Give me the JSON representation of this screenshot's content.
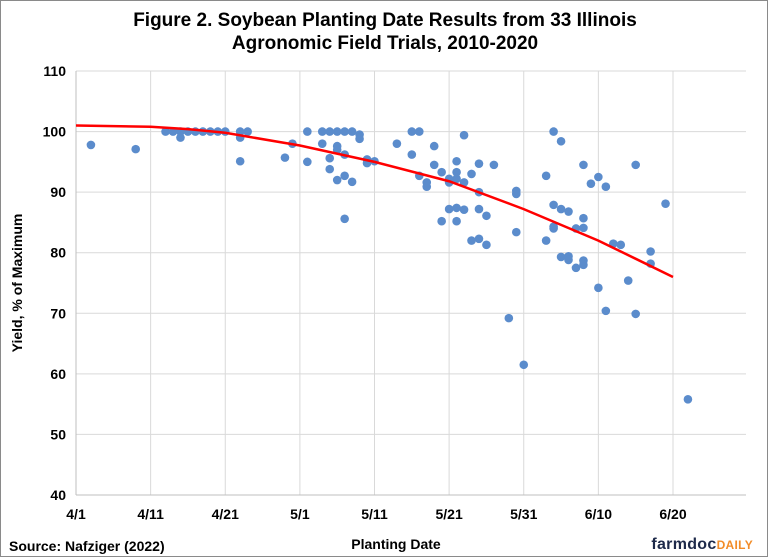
{
  "chart_data": {
    "type": "scatter",
    "title_line1": "Figure 2. Soybean Planting Date Results from 33 Illinois",
    "title_line2": "Agronomic Field Trials, 2010-2020",
    "xlabel": "Planting Date",
    "ylabel": "Yield, % of Maximum",
    "xlim": [
      "4/1",
      "6/25"
    ],
    "ylim": [
      40,
      110
    ],
    "xticks": [
      "4/1",
      "4/11",
      "4/21",
      "5/1",
      "5/11",
      "5/21",
      "5/31",
      "6/10",
      "6/20"
    ],
    "yticks": [
      40,
      50,
      60,
      70,
      80,
      90,
      100,
      110
    ],
    "grid": true,
    "point_color": "#5b8ccc",
    "curve_color": "#ff0000",
    "points": [
      [
        "4/3",
        97.8
      ],
      [
        "4/9",
        97.1
      ],
      [
        "4/13",
        100
      ],
      [
        "4/14",
        100
      ],
      [
        "4/15",
        100
      ],
      [
        "4/15",
        99
      ],
      [
        "4/16",
        100
      ],
      [
        "4/17",
        100
      ],
      [
        "4/18",
        100
      ],
      [
        "4/19",
        100
      ],
      [
        "4/20",
        100
      ],
      [
        "4/21",
        100
      ],
      [
        "4/23",
        100
      ],
      [
        "4/23",
        99
      ],
      [
        "4/23",
        95.1
      ],
      [
        "4/24",
        100
      ],
      [
        "4/29",
        95.7
      ],
      [
        "4/30",
        98
      ],
      [
        "5/2",
        100
      ],
      [
        "5/2",
        95
      ],
      [
        "5/4",
        100
      ],
      [
        "5/4",
        98
      ],
      [
        "5/5",
        100
      ],
      [
        "5/5",
        95.6
      ],
      [
        "5/5",
        93.8
      ],
      [
        "5/6",
        100
      ],
      [
        "5/6",
        97.6
      ],
      [
        "5/6",
        97
      ],
      [
        "5/6",
        92
      ],
      [
        "5/7",
        100
      ],
      [
        "5/7",
        96.2
      ],
      [
        "5/7",
        92.7
      ],
      [
        "5/7",
        85.6
      ],
      [
        "5/8",
        100
      ],
      [
        "5/8",
        91.7
      ],
      [
        "5/9",
        99.5
      ],
      [
        "5/9",
        98.8
      ],
      [
        "5/10",
        94.8
      ],
      [
        "5/10",
        95.4
      ],
      [
        "5/11",
        95.1
      ],
      [
        "5/14",
        98
      ],
      [
        "5/16",
        100
      ],
      [
        "5/16",
        96.2
      ],
      [
        "5/17",
        100
      ],
      [
        "5/17",
        92.7
      ],
      [
        "5/18",
        91.6
      ],
      [
        "5/18",
        90.9
      ],
      [
        "5/19",
        97.6
      ],
      [
        "5/19",
        94.5
      ],
      [
        "5/20",
        93.3
      ],
      [
        "5/20",
        85.2
      ],
      [
        "5/21",
        91.6
      ],
      [
        "5/21",
        87.2
      ],
      [
        "5/21",
        92.2
      ],
      [
        "5/22",
        92.2
      ],
      [
        "5/22",
        93.3
      ],
      [
        "5/22",
        95.1
      ],
      [
        "5/22",
        87.4
      ],
      [
        "5/22",
        85.2
      ],
      [
        "5/23",
        99.4
      ],
      [
        "5/23",
        91.6
      ],
      [
        "5/23",
        87.1
      ],
      [
        "5/24",
        93
      ],
      [
        "5/24",
        82
      ],
      [
        "5/25",
        94.7
      ],
      [
        "5/25",
        90
      ],
      [
        "5/25",
        87.2
      ],
      [
        "5/25",
        82.3
      ],
      [
        "5/26",
        86.1
      ],
      [
        "5/26",
        81.3
      ],
      [
        "5/27",
        94.5
      ],
      [
        "5/29",
        69.2
      ],
      [
        "5/30",
        90.2
      ],
      [
        "5/30",
        89.7
      ],
      [
        "5/30",
        83.4
      ],
      [
        "5/31",
        61.5
      ],
      [
        "6/3",
        92.7
      ],
      [
        "6/3",
        82
      ],
      [
        "6/4",
        100
      ],
      [
        "6/4",
        87.9
      ],
      [
        "6/4",
        84
      ],
      [
        "6/4",
        84.3
      ],
      [
        "6/5",
        98.4
      ],
      [
        "6/5",
        87.2
      ],
      [
        "6/5",
        79.3
      ],
      [
        "6/6",
        86.8
      ],
      [
        "6/6",
        79.4
      ],
      [
        "6/6",
        78.8
      ],
      [
        "6/7",
        84
      ],
      [
        "6/7",
        77.5
      ],
      [
        "6/8",
        94.5
      ],
      [
        "6/8",
        85.7
      ],
      [
        "6/8",
        84.1
      ],
      [
        "6/8",
        78.7
      ],
      [
        "6/8",
        78
      ],
      [
        "6/9",
        91.4
      ],
      [
        "6/10",
        92.5
      ],
      [
        "6/10",
        74.2
      ],
      [
        "6/11",
        90.9
      ],
      [
        "6/11",
        70.4
      ],
      [
        "6/12",
        81.5
      ],
      [
        "6/13",
        81.3
      ],
      [
        "6/14",
        75.4
      ],
      [
        "6/15",
        94.5
      ],
      [
        "6/15",
        69.9
      ],
      [
        "6/17",
        80.2
      ],
      [
        "6/17",
        78.2
      ],
      [
        "6/19",
        88.1
      ],
      [
        "6/22",
        55.8
      ]
    ],
    "curve": [
      [
        "4/1",
        101
      ],
      [
        "4/11",
        100.8
      ],
      [
        "4/16",
        100.4
      ],
      [
        "4/21",
        99.8
      ],
      [
        "5/1",
        97.7
      ],
      [
        "5/11",
        95
      ],
      [
        "5/21",
        91.8
      ],
      [
        "5/31",
        87.2
      ],
      [
        "6/10",
        82
      ],
      [
        "6/20",
        76
      ]
    ]
  },
  "footer": {
    "source": "Source: Nafziger (2022)",
    "logo_main": "farmdoc",
    "logo_accent": "DAILY"
  }
}
